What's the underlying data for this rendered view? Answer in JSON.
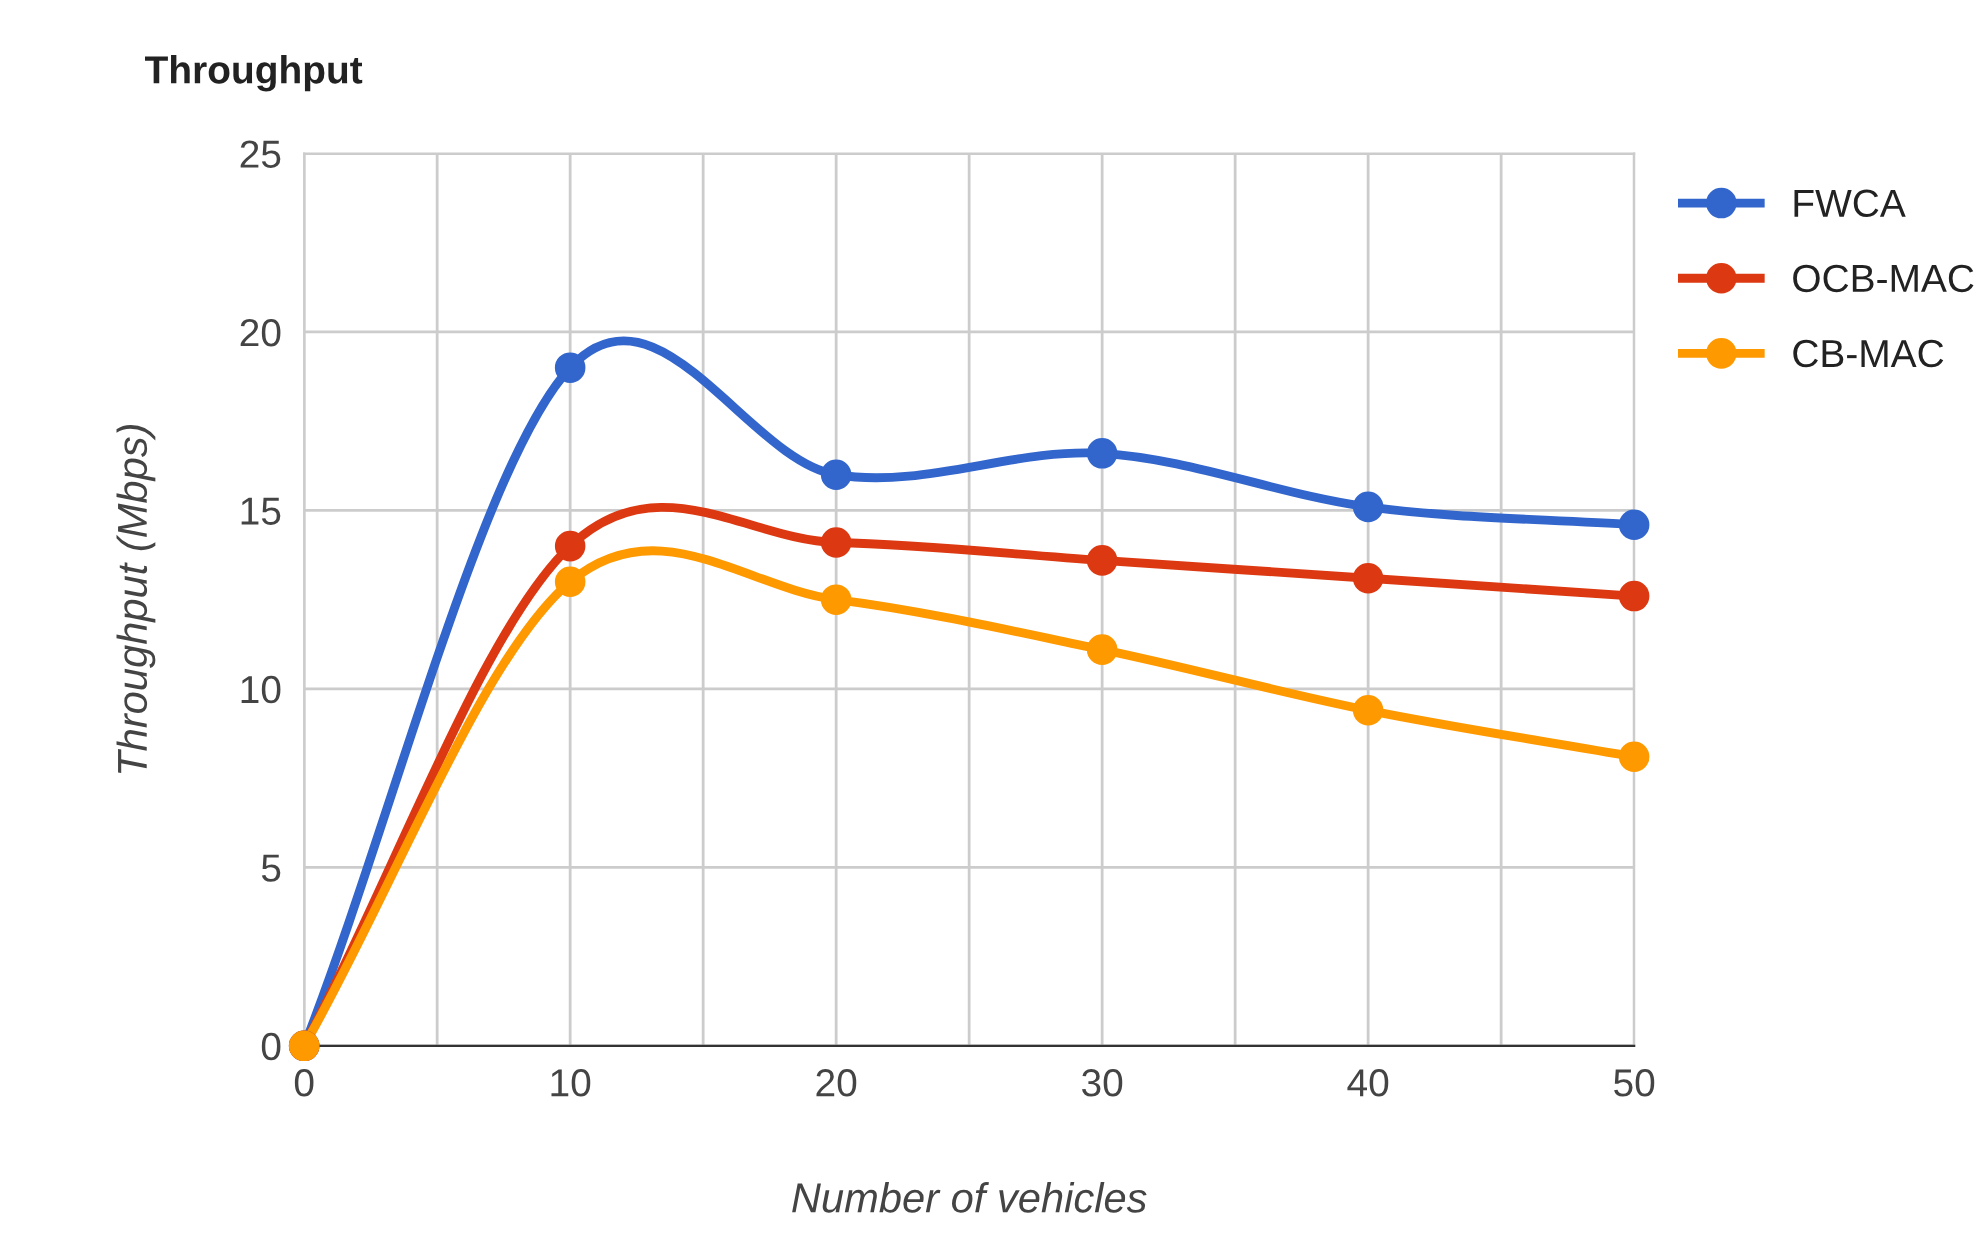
{
  "chart_data": {
    "type": "line",
    "title": "Throughput",
    "xlabel": "Number of vehicles",
    "ylabel": "Throughput (Mbps)",
    "x": [
      0,
      10,
      20,
      30,
      40,
      50
    ],
    "series": [
      {
        "name": "FWCA",
        "color": "#3366cc",
        "values": [
          0,
          19,
          16,
          16.6,
          15.1,
          14.6
        ]
      },
      {
        "name": "OCB-MAC",
        "color": "#dc3912",
        "values": [
          0,
          14,
          14.1,
          13.6,
          13.1,
          12.6
        ]
      },
      {
        "name": "CB-MAC",
        "color": "#ff9900",
        "values": [
          0,
          13,
          12.5,
          11.1,
          9.4,
          8.1
        ]
      }
    ],
    "xlim": [
      0,
      50
    ],
    "xticks": [
      0,
      {
        "value": 5,
        "label": null
      },
      10,
      {
        "value": 15,
        "label": null
      },
      20,
      {
        "value": 25,
        "label": null
      },
      30,
      {
        "value": 35,
        "label": null
      },
      40,
      {
        "value": 45,
        "label": null
      },
      50
    ],
    "ylim": [
      0,
      25
    ],
    "yticks": [
      0,
      5,
      10,
      15,
      20,
      25
    ],
    "grid": true,
    "legend": "right",
    "marker": "circle",
    "line_style": "solid"
  }
}
